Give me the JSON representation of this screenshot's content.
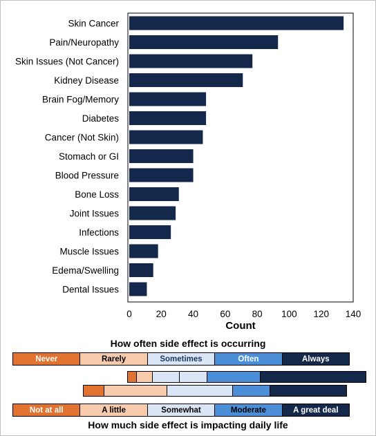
{
  "chart_data": {
    "type": "bar",
    "orientation": "horizontal",
    "categories": [
      "Skin Cancer",
      "Pain/Neuropathy",
      "Skin Issues (Not Cancer)",
      "Kidney Disease",
      "Brain Fog/Memory",
      "Diabetes",
      "Cancer (Not Skin)",
      "Stomach or GI",
      "Blood Pressure",
      "Bone Loss",
      "Joint Issues",
      "Infections",
      "Muscle Issues",
      "Edema/Swelling",
      "Dental Issues"
    ],
    "values": [
      134,
      93,
      77,
      71,
      48,
      48,
      46,
      40,
      40,
      31,
      29,
      26,
      18,
      15,
      11
    ],
    "xlabel": "Count",
    "ylabel": "",
    "xlim": [
      0,
      140
    ],
    "xticks": [
      "0",
      "20",
      "40",
      "60",
      "80",
      "100",
      "120",
      "140"
    ],
    "grid": false,
    "bar_color": "#14284b"
  },
  "legend": {
    "frequency_title": "How often side effect is occurring",
    "impact_title": "How much side effect is impacting daily life",
    "frequency_levels": [
      {
        "label": "Never",
        "color": "#e2722f",
        "text_color": "#ffffff"
      },
      {
        "label": "Rarely",
        "color": "#f8cbad",
        "text_color": "#000000"
      },
      {
        "label": "Sometimes",
        "color": "#dae6f5",
        "text_color": "#1f3864"
      },
      {
        "label": "Often",
        "color": "#4a8fd8",
        "text_color": "#ffffff"
      },
      {
        "label": "Always",
        "color": "#14284b",
        "text_color": "#ffffff"
      }
    ],
    "impact_levels": [
      {
        "label": "Not at all",
        "color": "#e2722f",
        "text_color": "#ffffff"
      },
      {
        "label": "A little",
        "color": "#f8cbad",
        "text_color": "#000000"
      },
      {
        "label": "Somewhat",
        "color": "#dae6f5",
        "text_color": "#000000"
      },
      {
        "label": "Moderate",
        "color": "#4a8fd8",
        "text_color": "#000000"
      },
      {
        "label": "A great deal",
        "color": "#14284b",
        "text_color": "#ffffff"
      }
    ],
    "example_frequency_bar": [
      {
        "level": "Never",
        "color": "#e2722f",
        "share": 0.036
      },
      {
        "level": "Rarely",
        "color": "#f8cbad",
        "share": 0.064
      },
      {
        "level": "Sometimes",
        "color": "#dae6f5",
        "share": 0.112
      },
      {
        "level": "Sometimes",
        "color": "#dae6f5",
        "share": 0.115
      },
      {
        "level": "Often",
        "color": "#4a8fd8",
        "share": 0.226
      },
      {
        "level": "Always",
        "color": "#14284b",
        "share": 0.447
      }
    ],
    "example_impact_bar": [
      {
        "level": "Not at all",
        "color": "#e2722f",
        "share": 0.077
      },
      {
        "level": "A little",
        "color": "#f8cbad",
        "share": 0.24
      },
      {
        "level": "Somewhat",
        "color": "#dae6f5",
        "share": 0.25
      },
      {
        "level": "Moderate",
        "color": "#4a8fd8",
        "share": 0.14
      },
      {
        "level": "A great deal",
        "color": "#14284b",
        "share": 0.293
      }
    ]
  }
}
